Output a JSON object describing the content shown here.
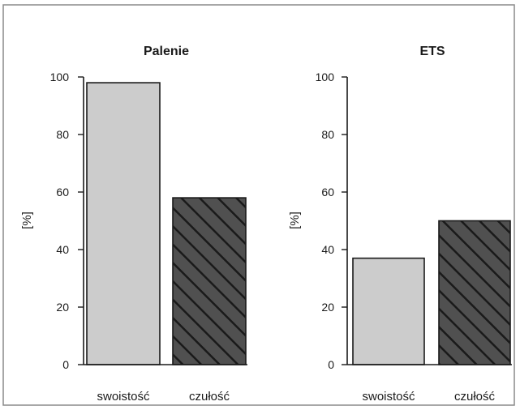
{
  "chart_data": [
    {
      "type": "bar",
      "title": "Palenie",
      "ylabel": "[%]",
      "xlabel": "",
      "ylim": [
        0,
        100
      ],
      "yticks": [
        0,
        20,
        40,
        60,
        80,
        100
      ],
      "categories": [
        "swoistość",
        "czułość"
      ],
      "values": [
        98,
        58
      ],
      "bar_styles": [
        "solid",
        "hatched"
      ]
    },
    {
      "type": "bar",
      "title": "ETS",
      "ylabel": "[%]",
      "xlabel": "",
      "ylim": [
        0,
        100
      ],
      "yticks": [
        0,
        20,
        40,
        60,
        80,
        100
      ],
      "categories": [
        "swoistość",
        "czułość"
      ],
      "values": [
        37,
        50
      ],
      "bar_styles": [
        "solid",
        "hatched"
      ]
    }
  ],
  "colors": {
    "solid_fill": "#cccccc",
    "hatch_fill": "#505050",
    "hatch_stroke": "#1a1a1a",
    "frame": "#8a8a8a"
  }
}
